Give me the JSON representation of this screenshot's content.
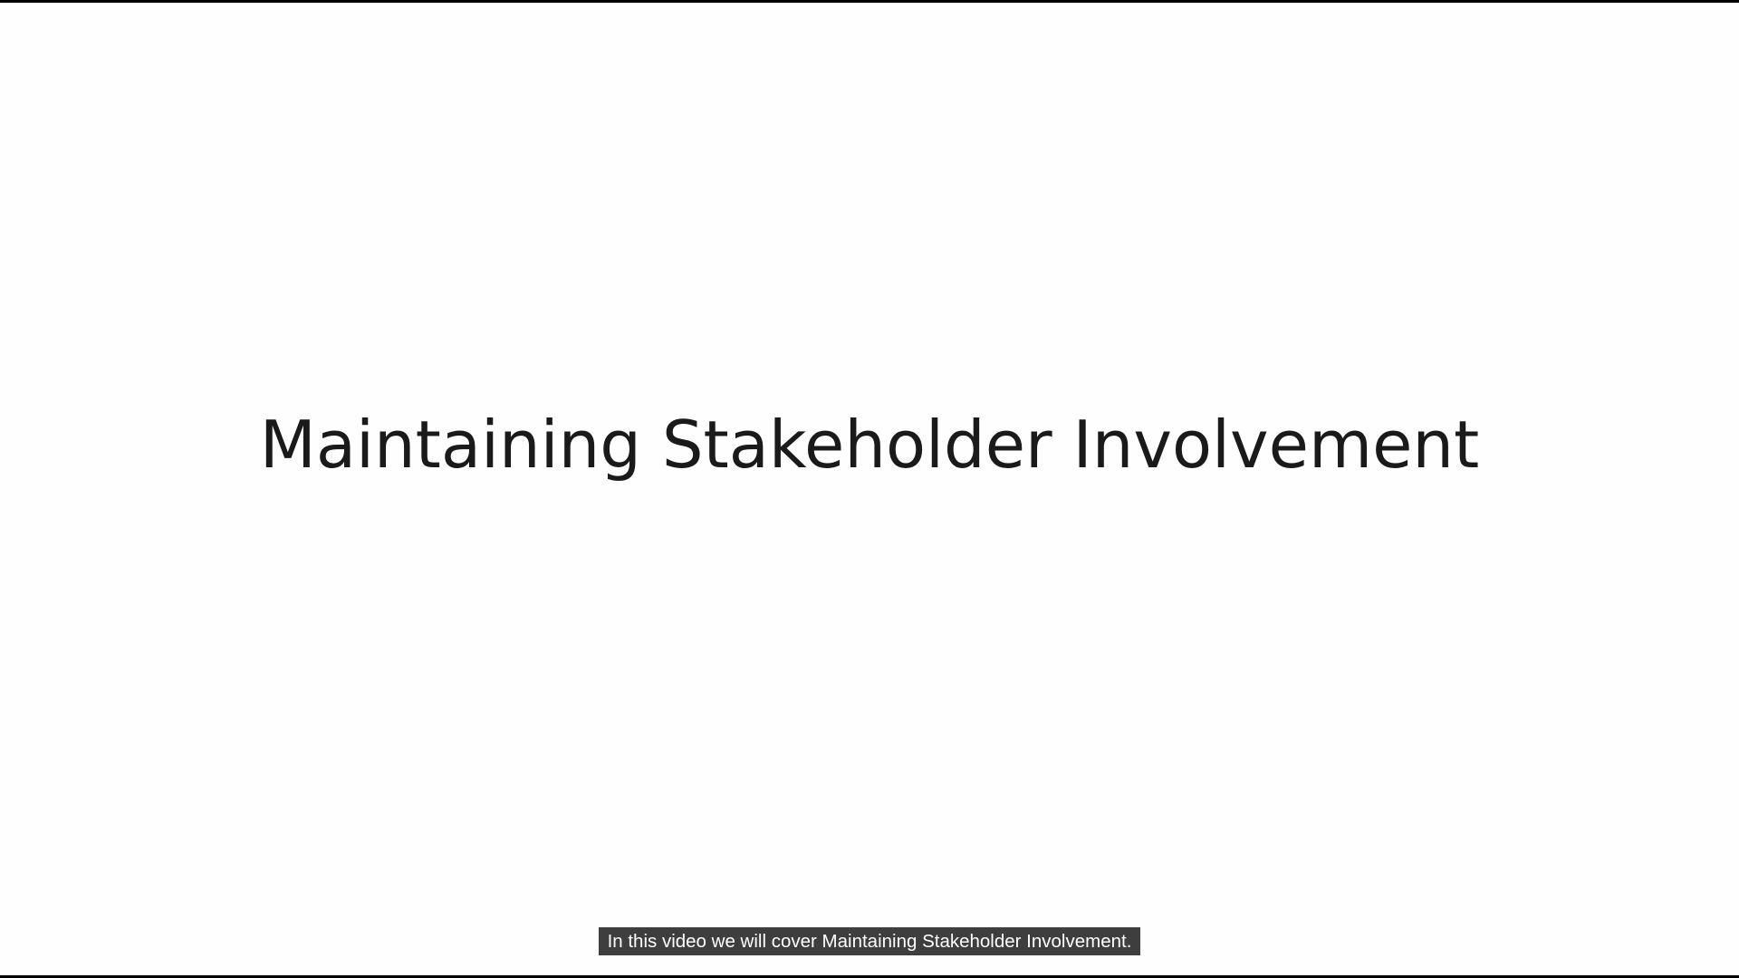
{
  "slide": {
    "title": "Maintaining Stakeholder Involvement"
  },
  "captions": {
    "current_text": "In this video we will cover Maintaining Stakeholder Involvement."
  },
  "colors": {
    "background": "#fefefe",
    "title_text": "#1a1a1a",
    "caption_bg": "#080808",
    "caption_text": "#ffffff",
    "letterbox": "#000000"
  }
}
